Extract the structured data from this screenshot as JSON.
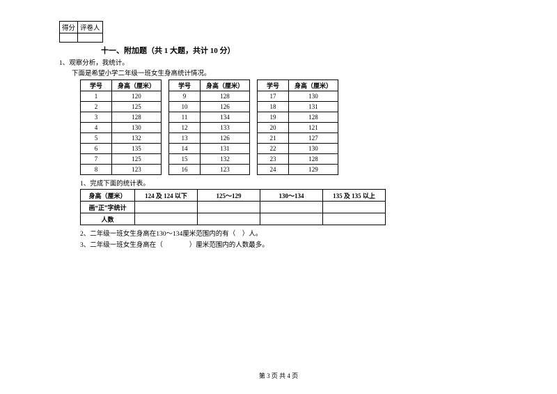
{
  "scorebox": {
    "score_label": "得分",
    "reviewer_label": "评卷人"
  },
  "section": {
    "title": "十一、附加题（共 1 大题，共计 10 分）"
  },
  "q1": {
    "line": "1、观察分析，我统计。",
    "sub": "下面是希望小学二年级一班女生身高统计情况。"
  },
  "data_headers": {
    "id": "学号",
    "height": "身高（厘米）"
  },
  "block1": [
    {
      "id": "1",
      "h": "120"
    },
    {
      "id": "2",
      "h": "125"
    },
    {
      "id": "3",
      "h": "128"
    },
    {
      "id": "4",
      "h": "130"
    },
    {
      "id": "5",
      "h": "132"
    },
    {
      "id": "6",
      "h": "135"
    },
    {
      "id": "7",
      "h": "125"
    },
    {
      "id": "8",
      "h": "123"
    }
  ],
  "block2": [
    {
      "id": "9",
      "h": "128"
    },
    {
      "id": "10",
      "h": "126"
    },
    {
      "id": "11",
      "h": "134"
    },
    {
      "id": "12",
      "h": "133"
    },
    {
      "id": "13",
      "h": "126"
    },
    {
      "id": "14",
      "h": "131"
    },
    {
      "id": "15",
      "h": "132"
    },
    {
      "id": "16",
      "h": "123"
    }
  ],
  "block3": [
    {
      "id": "17",
      "h": "130"
    },
    {
      "id": "18",
      "h": "131"
    },
    {
      "id": "19",
      "h": "128"
    },
    {
      "id": "20",
      "h": "121"
    },
    {
      "id": "21",
      "h": "127"
    },
    {
      "id": "22",
      "h": "130"
    },
    {
      "id": "23",
      "h": "128"
    },
    {
      "id": "24",
      "h": "129"
    }
  ],
  "sub1": "1、完成下面的统计表。",
  "stat": {
    "row_h": "身高（厘米）",
    "row_t": "画“正”字统计",
    "row_c": "人数",
    "ranges": [
      "124 及 124 以下",
      "125～129",
      "130～134",
      "135 及 135 以上"
    ]
  },
  "sub2": "2、二年级一班女生身高在130～134厘米范围内的有（　）人。",
  "sub3": "3、二年级一班女生身高在（　　　　）厘米范围内的人数最多。",
  "footer": "第 3 页 共 4 页"
}
